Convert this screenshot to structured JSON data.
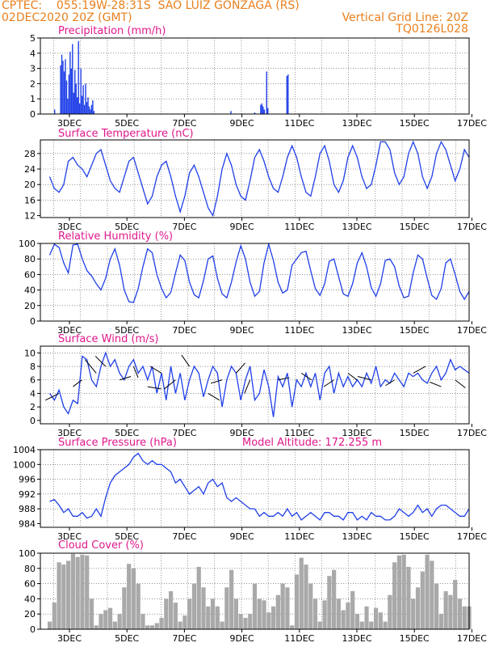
{
  "header": {
    "line1_left": "CPTEC:    055:19W-28:31S  SAO LUIZ GONZAGA (RS)",
    "line2_left": "02DEC2020 20Z (GMT)",
    "line2_right": "Vertical Grid Line: 20Z",
    "line3_right": "TQ0126L028"
  },
  "colors": {
    "header": "#e8801e",
    "title": "#e0188c",
    "line": "#1f3fe8",
    "cloud": "#a9a9a9",
    "arrow": "#000000"
  },
  "chart_data": [
    {
      "id": "precip",
      "type": "bar",
      "title": "Precipitation (mm/h)",
      "ylim": [
        0,
        5
      ],
      "yticks": [
        "0",
        "1",
        "2",
        "3",
        "4",
        "5"
      ],
      "xlim": [
        0,
        360
      ],
      "xtick_labels": [
        "3DEC",
        "5DEC",
        "7DEC",
        "9DEC",
        "11DEC",
        "13DEC",
        "15DEC",
        "17DEC"
      ],
      "x": [
        12,
        17,
        18,
        19,
        20,
        21,
        22,
        23,
        24,
        25,
        26,
        27,
        28,
        29,
        30,
        31,
        32,
        33,
        34,
        35,
        36,
        37,
        38,
        39,
        40,
        41,
        42,
        43,
        44,
        45,
        160,
        180,
        185,
        186,
        187,
        188,
        190,
        191,
        207,
        208
      ],
      "values": [
        0.3,
        3.2,
        3.9,
        3.5,
        2.8,
        3.6,
        2.2,
        1.0,
        2.6,
        4.1,
        3.0,
        4.6,
        1.4,
        2.9,
        2.0,
        1.1,
        4.8,
        0.7,
        3.0,
        1.2,
        1.9,
        0.6,
        2.0,
        0.8,
        1.1,
        0.5,
        0.3,
        0.6,
        0.9,
        0.2,
        0.2,
        0.1,
        0.6,
        0.7,
        0.5,
        0.3,
        2.8,
        0.4,
        2.5,
        2.6
      ]
    },
    {
      "id": "temp",
      "type": "line",
      "title": "Surface Temperature (nC)",
      "ylim": [
        11.5,
        31.5
      ],
      "yticks": [
        "12",
        "16",
        "20",
        "24",
        "28"
      ],
      "xtick_labels": [
        "3DEC",
        "5DEC",
        "7DEC",
        "9DEC",
        "11DEC",
        "13DEC",
        "15DEC",
        "17DEC"
      ],
      "x": [
        0,
        4,
        8,
        12,
        16,
        20,
        24,
        28,
        32,
        36,
        40,
        44,
        48,
        52,
        56,
        60,
        64,
        68,
        72,
        76,
        80,
        84,
        88,
        92,
        96,
        100,
        104,
        108,
        112,
        116,
        120,
        124,
        128,
        132,
        136,
        140,
        144,
        148,
        152,
        156,
        160,
        164,
        168,
        172,
        176,
        180,
        184,
        188,
        192,
        196,
        200,
        204,
        208,
        212,
        216,
        220,
        224,
        228,
        232,
        236,
        240,
        244,
        248,
        252,
        256,
        260,
        264,
        268,
        272,
        276,
        280,
        284,
        288,
        292,
        296,
        300,
        304,
        308,
        312,
        316,
        320,
        324,
        328,
        332,
        336,
        340,
        344,
        348,
        352,
        356,
        360
      ],
      "values": [
        22,
        19,
        18,
        20,
        26,
        27,
        25,
        24,
        22,
        25,
        28,
        29,
        25,
        21,
        19,
        18,
        22,
        26,
        27,
        23,
        19,
        15,
        17,
        22,
        25,
        26,
        22,
        17,
        13,
        17,
        23,
        25,
        22,
        18,
        14,
        12,
        17,
        24,
        28,
        25,
        20,
        17,
        16,
        21,
        27,
        29,
        26,
        22,
        19,
        18,
        22,
        27,
        30,
        27,
        22,
        18,
        17,
        22,
        28,
        30,
        26,
        20,
        18,
        21,
        27,
        30,
        27,
        22,
        19,
        20,
        25,
        31,
        31,
        29,
        23,
        20,
        22,
        28,
        31,
        28,
        22,
        19,
        22,
        28,
        31,
        29,
        25,
        21,
        24,
        29,
        27
      ]
    },
    {
      "id": "humidity",
      "type": "line",
      "title": "Relative Humidity (%)",
      "ylim": [
        0,
        100
      ],
      "yticks": [
        "0",
        "20",
        "40",
        "60",
        "80",
        "100"
      ],
      "xtick_labels": [
        "3DEC",
        "5DEC",
        "7DEC",
        "9DEC",
        "11DEC",
        "13DEC",
        "15DEC",
        "17DEC"
      ],
      "x": [
        0,
        4,
        8,
        12,
        16,
        20,
        24,
        28,
        32,
        36,
        40,
        44,
        48,
        52,
        56,
        60,
        64,
        68,
        72,
        76,
        80,
        84,
        88,
        92,
        96,
        100,
        104,
        108,
        112,
        116,
        120,
        124,
        128,
        132,
        136,
        140,
        144,
        148,
        152,
        156,
        160,
        164,
        168,
        172,
        176,
        180,
        184,
        188,
        192,
        196,
        200,
        204,
        208,
        212,
        216,
        220,
        224,
        228,
        232,
        236,
        240,
        244,
        248,
        252,
        256,
        260,
        264,
        268,
        272,
        276,
        280,
        284,
        288,
        292,
        296,
        300,
        304,
        308,
        312,
        316,
        320,
        324,
        328,
        332,
        336,
        340,
        344,
        348,
        352,
        356,
        360
      ],
      "values": [
        85,
        99,
        95,
        75,
        62,
        98,
        99,
        80,
        65,
        58,
        48,
        40,
        55,
        80,
        93,
        72,
        40,
        25,
        24,
        42,
        70,
        93,
        88,
        60,
        42,
        30,
        37,
        62,
        85,
        78,
        50,
        34,
        30,
        52,
        80,
        84,
        55,
        35,
        30,
        50,
        76,
        97,
        80,
        50,
        32,
        38,
        75,
        99,
        78,
        50,
        36,
        40,
        72,
        80,
        88,
        90,
        65,
        42,
        33,
        48,
        77,
        80,
        57,
        35,
        32,
        48,
        75,
        88,
        70,
        43,
        32,
        48,
        78,
        80,
        70,
        45,
        30,
        32,
        62,
        85,
        80,
        55,
        33,
        28,
        42,
        75,
        80,
        60,
        38,
        28,
        38
      ]
    },
    {
      "id": "wind",
      "type": "line",
      "title": "Surface Wind (m/s)",
      "ylim": [
        -0.5,
        11
      ],
      "yticks": [
        "0",
        "2",
        "4",
        "6",
        "8",
        "10"
      ],
      "xtick_labels": [
        "3DEC",
        "5DEC",
        "7DEC",
        "9DEC",
        "11DEC",
        "13DEC",
        "15DEC",
        "17DEC"
      ],
      "x": [
        0,
        4,
        8,
        12,
        16,
        20,
        24,
        28,
        32,
        36,
        40,
        44,
        48,
        52,
        56,
        60,
        64,
        68,
        72,
        76,
        80,
        84,
        88,
        92,
        96,
        100,
        104,
        108,
        112,
        116,
        120,
        124,
        128,
        132,
        136,
        140,
        144,
        148,
        152,
        156,
        160,
        164,
        168,
        172,
        176,
        180,
        184,
        188,
        192,
        196,
        200,
        204,
        208,
        212,
        216,
        220,
        224,
        228,
        232,
        236,
        240,
        244,
        248,
        252,
        256,
        260,
        264,
        268,
        272,
        276,
        280,
        284,
        288,
        292,
        296,
        300,
        304,
        308,
        312,
        316,
        320,
        324,
        328,
        332,
        336,
        340,
        344,
        348,
        352,
        356,
        360
      ],
      "values": [
        4,
        3,
        4.5,
        2,
        1,
        3,
        2.5,
        9.5,
        9,
        6,
        5,
        8,
        10,
        8,
        9,
        7,
        6,
        8,
        9,
        7,
        8,
        6,
        8,
        4,
        7,
        3,
        8,
        4,
        7,
        3,
        6,
        8,
        7,
        3.5,
        6,
        8,
        7,
        2,
        6,
        8,
        7,
        3,
        6,
        8,
        3,
        4,
        7.5,
        5,
        0.5,
        6.5,
        5,
        7,
        2,
        6,
        5,
        7,
        5,
        7,
        3,
        7,
        8,
        4,
        7,
        5,
        6.5,
        5,
        6,
        5,
        7,
        5.5,
        8,
        5,
        6,
        5.5,
        7,
        6,
        5,
        7,
        6.5,
        7,
        6,
        5.5,
        7,
        8,
        6,
        7,
        9,
        7.5,
        8,
        7.5,
        7
      ]
    },
    {
      "id": "pressure",
      "type": "line",
      "title": "Surface Pressure (hPa)",
      "annotation": "Model Altitude: 172.255 m",
      "ylim": [
        983,
        1004
      ],
      "yticks": [
        "984",
        "988",
        "992",
        "996",
        "1000",
        "1004"
      ],
      "xtick_labels": [
        "3DEC",
        "5DEC",
        "7DEC",
        "9DEC",
        "11DEC",
        "13DEC",
        "15DEC",
        "17DEC"
      ],
      "x": [
        0,
        4,
        8,
        12,
        16,
        20,
        24,
        28,
        32,
        36,
        40,
        44,
        48,
        52,
        56,
        60,
        64,
        68,
        72,
        76,
        80,
        84,
        88,
        92,
        96,
        100,
        104,
        108,
        112,
        116,
        120,
        124,
        128,
        132,
        136,
        140,
        144,
        148,
        152,
        156,
        160,
        164,
        168,
        172,
        176,
        180,
        184,
        188,
        192,
        196,
        200,
        204,
        208,
        212,
        216,
        220,
        224,
        228,
        232,
        236,
        240,
        244,
        248,
        252,
        256,
        260,
        264,
        268,
        272,
        276,
        280,
        284,
        288,
        292,
        296,
        300,
        304,
        308,
        312,
        316,
        320,
        324,
        328,
        332,
        336,
        340,
        344,
        348,
        352,
        356,
        360
      ],
      "values": [
        990,
        990.5,
        989,
        987,
        988,
        986,
        986,
        987,
        985.5,
        986,
        988,
        986,
        991,
        995,
        997,
        998,
        999,
        1000,
        1002,
        1003,
        1001,
        1000,
        1001,
        1000,
        1000,
        999,
        998,
        995,
        996,
        994,
        992,
        993,
        994,
        992,
        995,
        996,
        994,
        995,
        991,
        990,
        991,
        990,
        989,
        988,
        988,
        986,
        987,
        986,
        986,
        987,
        986,
        988,
        986,
        987,
        985,
        986,
        987,
        986,
        985,
        987,
        987,
        986,
        986,
        985,
        987,
        987,
        985,
        986,
        985,
        987,
        986,
        986,
        985,
        985,
        986,
        988,
        987,
        986,
        987,
        989,
        987,
        988,
        986,
        988,
        989,
        989,
        988,
        987,
        986,
        986,
        988
      ]
    },
    {
      "id": "cloud",
      "type": "bar",
      "title": "Cloud Cover (%)",
      "ylim": [
        0,
        100
      ],
      "yticks": [
        "0",
        "20",
        "40",
        "60",
        "80",
        "100"
      ],
      "xtick_labels": [
        "3DEC",
        "5DEC",
        "7DEC",
        "9DEC",
        "11DEC",
        "13DEC",
        "15DEC",
        "17DEC"
      ],
      "x": [
        0,
        4,
        8,
        12,
        16,
        20,
        24,
        28,
        32,
        36,
        40,
        44,
        48,
        52,
        56,
        60,
        64,
        68,
        72,
        76,
        80,
        84,
        88,
        92,
        96,
        100,
        104,
        108,
        112,
        116,
        120,
        124,
        128,
        132,
        136,
        140,
        144,
        148,
        152,
        156,
        160,
        164,
        168,
        172,
        176,
        180,
        184,
        188,
        192,
        196,
        200,
        204,
        208,
        212,
        216,
        220,
        224,
        228,
        232,
        236,
        240,
        244,
        248,
        252,
        256,
        260,
        264,
        268,
        272,
        276,
        280,
        284,
        288,
        292,
        296,
        300,
        304,
        308,
        312,
        316,
        320,
        324,
        328,
        332,
        336,
        340,
        344,
        348,
        352,
        356,
        360
      ],
      "values": [
        10,
        35,
        88,
        85,
        90,
        99,
        95,
        98,
        97,
        40,
        5,
        20,
        25,
        28,
        10,
        20,
        55,
        86,
        80,
        60,
        20,
        5,
        5,
        8,
        15,
        40,
        50,
        35,
        10,
        18,
        40,
        60,
        82,
        55,
        30,
        40,
        30,
        10,
        55,
        78,
        40,
        20,
        15,
        20,
        60,
        40,
        38,
        22,
        30,
        45,
        60,
        55,
        5,
        72,
        94,
        85,
        60,
        40,
        10,
        38,
        70,
        78,
        40,
        25,
        35,
        50,
        20,
        10,
        30,
        10,
        28,
        22,
        10,
        45,
        88,
        97,
        98,
        82,
        40,
        55,
        76,
        98,
        90,
        60,
        20,
        50,
        45,
        65,
        40,
        30,
        30
      ]
    }
  ]
}
